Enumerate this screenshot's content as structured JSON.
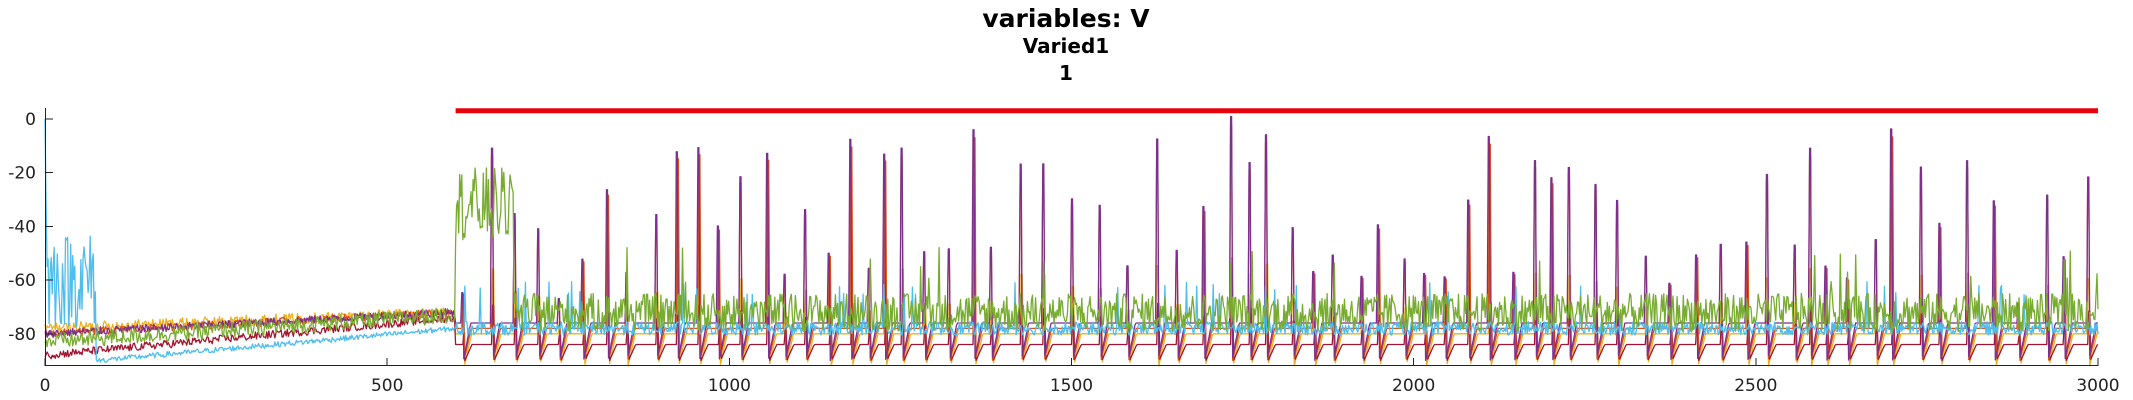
{
  "chart_data": {
    "type": "line",
    "title": "variables: V",
    "subtitle": "Varied1",
    "subtitle2": "1",
    "xlabel": "",
    "ylabel": "",
    "xlim": [
      0,
      3000
    ],
    "ylim": [
      -92,
      4
    ],
    "x_ticks": [
      0,
      500,
      1000,
      1500,
      2000,
      2500,
      3000
    ],
    "y_ticks": [
      0,
      -20,
      -40,
      -60,
      -80
    ],
    "grid": false,
    "legend": "none",
    "annotations": [
      {
        "type": "horizontal-bar",
        "color": "#e8000b",
        "x": [
          600,
          3000
        ],
        "y": 3
      }
    ],
    "series": [
      {
        "color": "#4dbeee",
        "role": "early burst near x=0-70 reaching about -40, later baseline about -78",
        "spike_style": "small"
      },
      {
        "color": "#77ac30",
        "role": "noisy plateau near x=600-680 about -20 to -40, later noise -80 to -60 with bumps to -50",
        "spike_style": "noise"
      },
      {
        "color": "#7e2f8e",
        "role": "regular spikes from x=600, peaks up to about 0",
        "spike_style": "spike"
      },
      {
        "color": "#d95319",
        "role": "regular spikes overlapping purple",
        "spike_style": "spike"
      },
      {
        "color": "#edb120",
        "role": "troughs about -92, spikes to about -60",
        "spike_style": "spike"
      },
      {
        "color": "#a2142f",
        "role": "baseline about -84, small spikes",
        "spike_style": "spike"
      }
    ]
  }
}
